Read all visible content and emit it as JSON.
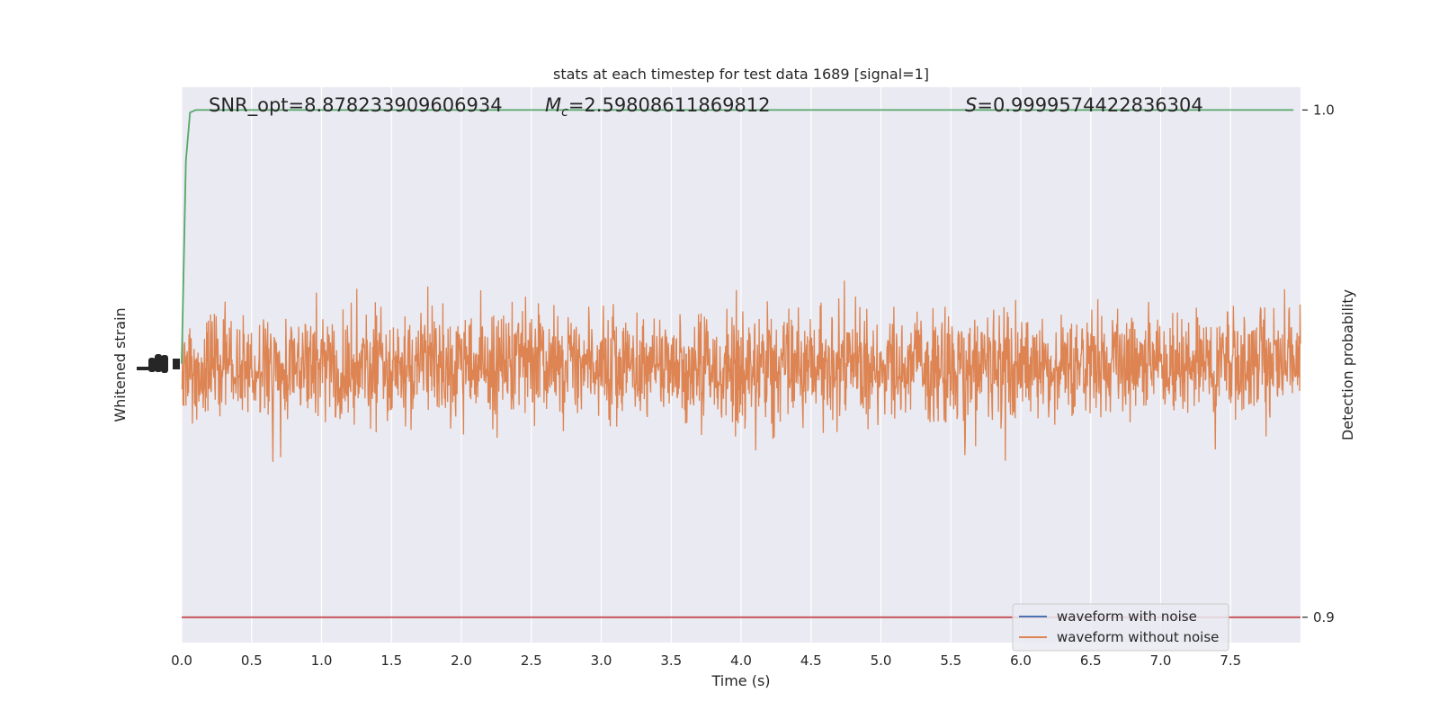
{
  "chart_data": {
    "type": "line",
    "title": "stats at each timestep for test data 1689 [signal=1]",
    "annotations": {
      "snr": "SNR_opt=8.878233909606934",
      "mc_symbol": "M",
      "mc_sub": "c",
      "mc_value": "=2.59808611869812",
      "s_symbol": "S",
      "s_value": "=0.9999574422836304"
    },
    "xlabel": "Time (s)",
    "ylabel_left": "Whitened strain",
    "ylabel_right": "Detection probability",
    "xlim": [
      0.0,
      8.0
    ],
    "x_ticks": [
      "0.0",
      "0.5",
      "1.0",
      "1.5",
      "2.0",
      "2.5",
      "3.0",
      "3.5",
      "4.0",
      "4.5",
      "5.0",
      "5.5",
      "6.0",
      "6.5",
      "7.0",
      "7.5"
    ],
    "right_ylim": [
      0.895,
      1.0045
    ],
    "right_ticks": [
      "1.0",
      "0.9"
    ],
    "grid": true,
    "legend_position": "lower-right",
    "series": [
      {
        "name": "waveform with noise",
        "color": "#4c72b0",
        "axis": "left"
      },
      {
        "name": "waveform without noise",
        "color": "#dd8452",
        "axis": "left"
      },
      {
        "color": "#55a868",
        "axis": "right",
        "x": [
          0.0,
          0.03,
          0.06,
          0.1,
          0.2,
          1.0,
          4.0,
          7.95
        ],
        "values": [
          0.95,
          0.99,
          0.9995,
          1.0,
          1.0,
          1.0,
          1.0,
          1.0
        ]
      },
      {
        "color": "#c44e52",
        "axis": "right",
        "x": [
          0.0,
          8.0
        ],
        "values": [
          0.9,
          0.9
        ]
      }
    ]
  }
}
